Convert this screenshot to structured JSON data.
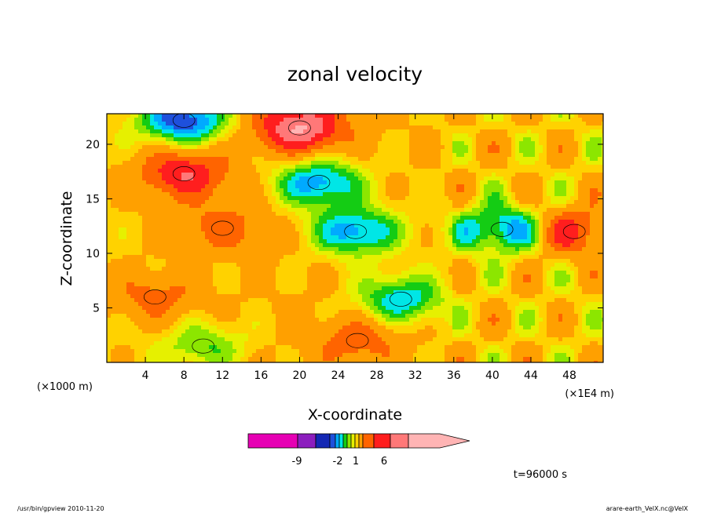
{
  "chart_data": {
    "type": "heatmap",
    "title": "zonal velocity",
    "xlabel": "X-coordinate",
    "ylabel": "Z-coordinate",
    "x_unit": "(×1E4 m)",
    "y_unit": "(×1000 m)",
    "xlim": [
      0,
      51.5
    ],
    "ylim": [
      0,
      22.8
    ],
    "x_ticks": [
      4,
      8,
      12,
      16,
      20,
      24,
      28,
      32,
      36,
      40,
      44,
      48
    ],
    "y_ticks": [
      5,
      10,
      15,
      20
    ],
    "grid": false,
    "colorbar": {
      "colors": [
        "#e600b4",
        "#8c1ebe",
        "#1428b4",
        "#1e50dc",
        "#00aaff",
        "#00e6e6",
        "#14cc14",
        "#8ce600",
        "#e6f000",
        "#ffd200",
        "#ffa000",
        "#ff6400",
        "#ff1e1e",
        "#ff7878",
        "#ffb4b4"
      ],
      "tick_labels": [
        "-9",
        "-2",
        "1",
        "6"
      ]
    },
    "features": [
      {
        "x": 20,
        "z": 21.5,
        "value": 9
      },
      {
        "x": 8,
        "z": 17.3,
        "value": 7
      },
      {
        "x": 12,
        "z": 12.3,
        "value": 4
      },
      {
        "x": 25.8,
        "z": 12,
        "value": -5
      },
      {
        "x": 22,
        "z": 16.5,
        "value": -5
      },
      {
        "x": 30.5,
        "z": 5.8,
        "value": -4
      },
      {
        "x": 8,
        "z": 22.2,
        "value": -6
      },
      {
        "x": 41,
        "z": 12.2,
        "value": -5
      },
      {
        "x": 48.5,
        "z": 12,
        "value": 6
      },
      {
        "x": 5,
        "z": 6,
        "value": 4
      },
      {
        "x": 26,
        "z": 2,
        "value": 4
      },
      {
        "x": 10,
        "z": 1.5,
        "value": -2
      }
    ],
    "time_label": "t=96000 s"
  },
  "footer": {
    "left": "/usr/bin/gpview   2010-11-20",
    "right": "arare-earth_VelX.nc@VelX"
  }
}
